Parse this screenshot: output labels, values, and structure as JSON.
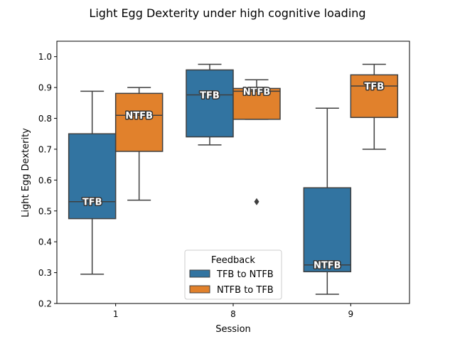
{
  "chart_data": {
    "type": "box",
    "title": "Light Egg Dexterity under high cognitive loading",
    "xlabel": "Session",
    "ylabel": "Light Egg Dexterity",
    "categories": [
      "1",
      "8",
      "9"
    ],
    "ylim": [
      0.2,
      1.05
    ],
    "yticks": [
      "0.2",
      "0.3",
      "0.4",
      "0.5",
      "0.6",
      "0.7",
      "0.8",
      "0.9",
      "1.0"
    ],
    "legend": {
      "title": "Feedback",
      "position": "bottom-center",
      "entries": [
        "TFB to NTFB",
        "NTFB to TFB"
      ]
    },
    "series": [
      {
        "name": "TFB to NTFB",
        "color": "#3274a1",
        "boxes": [
          {
            "category": "1",
            "whisker_low": 0.295,
            "q1": 0.475,
            "median": 0.53,
            "q3": 0.75,
            "whisker_high": 0.888,
            "outliers": [],
            "label": "TFB"
          },
          {
            "category": "8",
            "whisker_low": 0.714,
            "q1": 0.74,
            "median": 0.876,
            "q3": 0.957,
            "whisker_high": 0.975,
            "outliers": [],
            "label": "TFB"
          },
          {
            "category": "9",
            "whisker_low": 0.23,
            "q1": 0.303,
            "median": 0.325,
            "q3": 0.575,
            "whisker_high": 0.833,
            "outliers": [],
            "label": "NTFB"
          }
        ]
      },
      {
        "name": "NTFB to TFB",
        "color": "#e1812c",
        "boxes": [
          {
            "category": "1",
            "whisker_low": 0.535,
            "q1": 0.693,
            "median": 0.81,
            "q3": 0.881,
            "whisker_high": 0.9,
            "outliers": [],
            "label": "NTFB"
          },
          {
            "category": "8",
            "whisker_low": 0.797,
            "q1": 0.797,
            "median": 0.888,
            "q3": 0.897,
            "whisker_high": 0.925,
            "outliers": [
              0.53
            ],
            "label": "NTFB"
          },
          {
            "category": "9",
            "whisker_low": 0.7,
            "q1": 0.803,
            "median": 0.905,
            "q3": 0.941,
            "whisker_high": 0.975,
            "outliers": [],
            "label": "TFB"
          }
        ]
      }
    ]
  }
}
